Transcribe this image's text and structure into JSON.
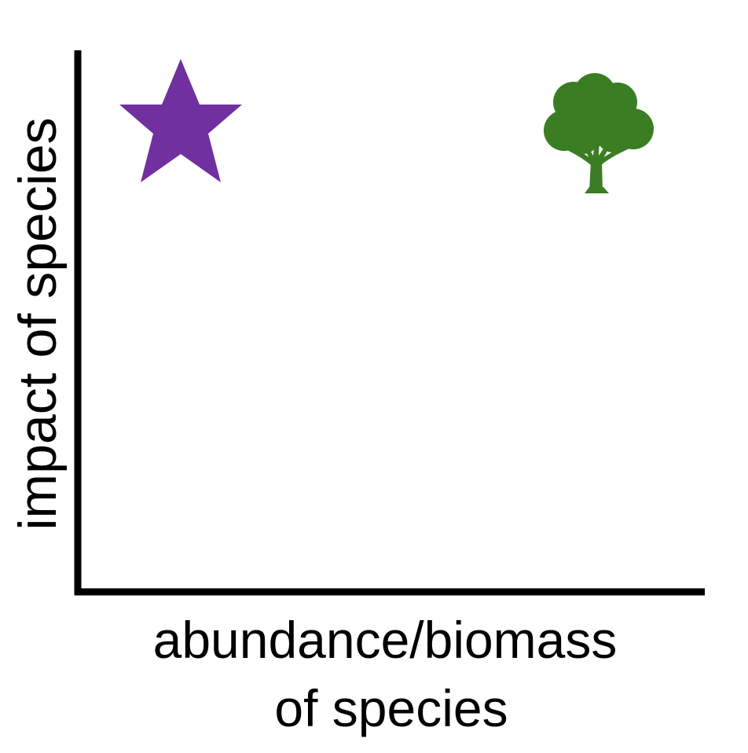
{
  "diagram": {
    "y_axis_label": "impact of species",
    "x_axis_label_lines": [
      "abundance/biomass",
      "of species"
    ],
    "markers": [
      {
        "name": "star-icon",
        "shape": "star",
        "color": "#7030a0",
        "abundance": "low",
        "impact": "high"
      },
      {
        "name": "tree-icon",
        "shape": "tree",
        "color": "#3a7d22",
        "abundance": "high",
        "impact": "high"
      }
    ],
    "axis_color": "#000000"
  }
}
